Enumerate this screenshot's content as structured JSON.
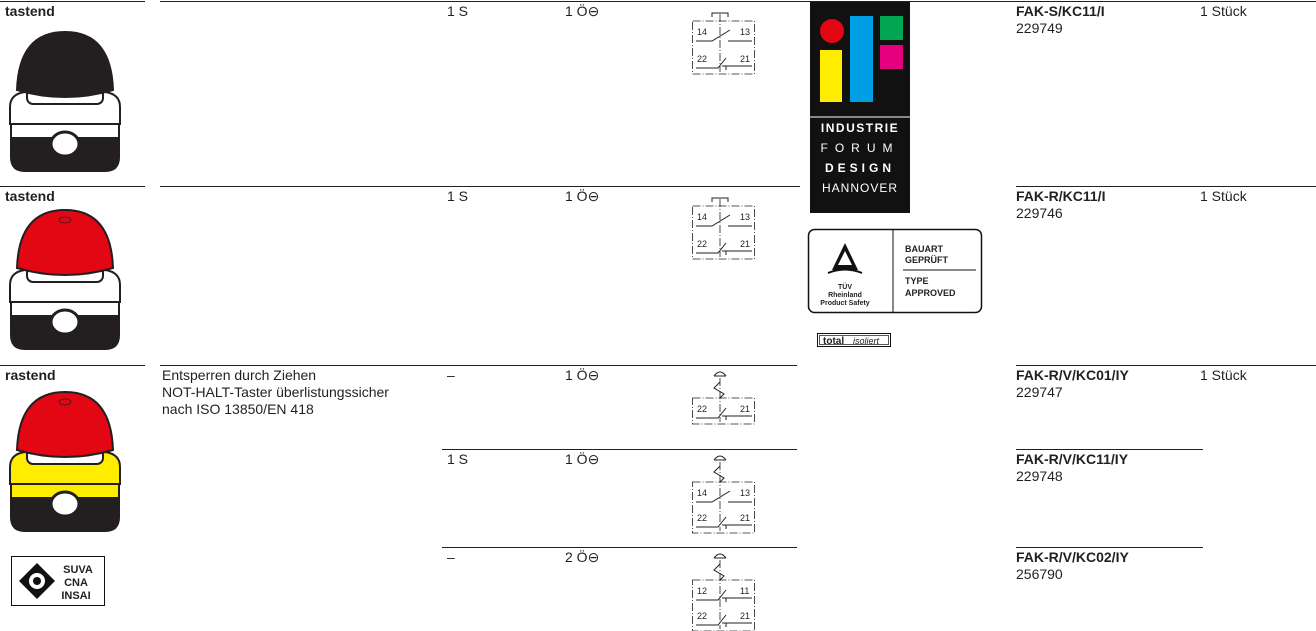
{
  "rows": [
    {
      "mode": "tastend",
      "s": "1 S",
      "o": "1 Ö⊖",
      "contacts": [
        "14",
        "13",
        "22",
        "21"
      ],
      "code": "FAK-S/KC11/I",
      "number": "229749",
      "qty": "1 Stück"
    },
    {
      "mode": "tastend",
      "s": "1 S",
      "o": "1 Ö⊖",
      "contacts": [
        "14",
        "13",
        "22",
        "21"
      ],
      "code": "FAK-R/KC11/I",
      "number": "229746",
      "qty": "1 Stück"
    },
    {
      "mode": "rastend",
      "description": [
        "Entsperren durch Ziehen",
        "NOT-HALT-Taster überlistungssicher",
        "nach ISO 13850/EN 418"
      ],
      "s": "–",
      "o": "1 Ö⊖",
      "contacts": [
        "22",
        "21"
      ],
      "code": "FAK-R/V/KC01/IY",
      "number": "229747",
      "qty": "1 Stück"
    },
    {
      "s": "1 S",
      "o": "1 Ö⊖",
      "contacts": [
        "14",
        "13",
        "22",
        "21"
      ],
      "code": "FAK-R/V/KC11/IY",
      "number": "229748"
    },
    {
      "s": "–",
      "o": "2 Ö⊖",
      "contacts": [
        "12",
        "11",
        "22",
        "21"
      ],
      "code": "FAK-R/V/KC02/IY",
      "number": "256790"
    }
  ],
  "logos": {
    "if": [
      "INDUSTRIE",
      "FORUM",
      "DESIGN",
      "HANNOVER"
    ],
    "tuv": {
      "name": "TÜV",
      "org": "Rheinland",
      "scope": "Product Safety",
      "lines": [
        "BAUART",
        "GEPRÜFT",
        "TYPE",
        "APPROVED"
      ]
    },
    "total": {
      "brand": "total",
      "suffix": "isoliert"
    },
    "suva": [
      "SUVA",
      "CNA",
      "INSAI"
    ]
  }
}
